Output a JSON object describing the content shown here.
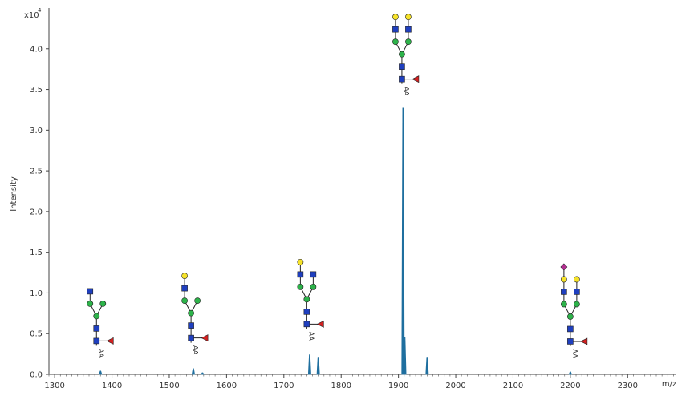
{
  "chart_data": {
    "type": "line",
    "xlabel": "m/z",
    "ylabel": "Intensity",
    "y_multiplier_label": "x10",
    "y_multiplier_exponent": "4",
    "xlim": [
      1290,
      2385
    ],
    "ylim": [
      0,
      4.5
    ],
    "x_ticks": [
      1300,
      1400,
      1500,
      1600,
      1700,
      1800,
      1900,
      2000,
      2100,
      2200,
      2300
    ],
    "x_tick_labels": [
      "1300",
      "1400",
      "1500",
      "1600",
      "1700",
      "1800",
      "1900",
      "2000",
      "2100",
      "2200",
      "2300"
    ],
    "y_ticks": [
      0,
      0.5,
      1.0,
      1.5,
      2.0,
      2.5,
      3.0,
      3.5,
      4.0
    ],
    "y_tick_labels": [
      "0.0",
      "0.5",
      "1.0",
      "1.5",
      "2.0",
      "2.5",
      "3.0",
      "3.5",
      "4.0"
    ],
    "grid": false,
    "line_color": "#1f6f9f",
    "peaks": [
      {
        "x": 1380,
        "y": 0.04
      },
      {
        "x": 1542,
        "y": 0.07
      },
      {
        "x": 1558,
        "y": 0.02
      },
      {
        "x": 1745,
        "y": 0.24
      },
      {
        "x": 1760,
        "y": 0.21
      },
      {
        "x": 1908,
        "y": 3.27
      },
      {
        "x": 1911,
        "y": 0.45
      },
      {
        "x": 1950,
        "y": 0.21
      },
      {
        "x": 2200,
        "y": 0.03
      }
    ],
    "glycan_annotations": [
      {
        "structure": "FA2",
        "x": 1373,
        "top_y": 1.02,
        "tag": "AA"
      },
      {
        "structure": "FA2G1",
        "x": 1538,
        "top_y": 1.21,
        "tag": "AA"
      },
      {
        "structure": "FA2BG1",
        "x": 1740,
        "top_y": 1.38,
        "tag": "AA"
      },
      {
        "structure": "FA2G2",
        "x": 1906,
        "top_y": 4.39,
        "tag": "AA"
      },
      {
        "structure": "FA2G2S1",
        "x": 2200,
        "top_y": 1.32,
        "tag": "AA"
      }
    ],
    "symbol_colors": {
      "GlcNAc": "#1f3fbf",
      "Mannose": "#2db34a",
      "Galactose": "#f5e22a",
      "Fucose": "#d42020",
      "NeuAc": "#b0308f"
    }
  }
}
